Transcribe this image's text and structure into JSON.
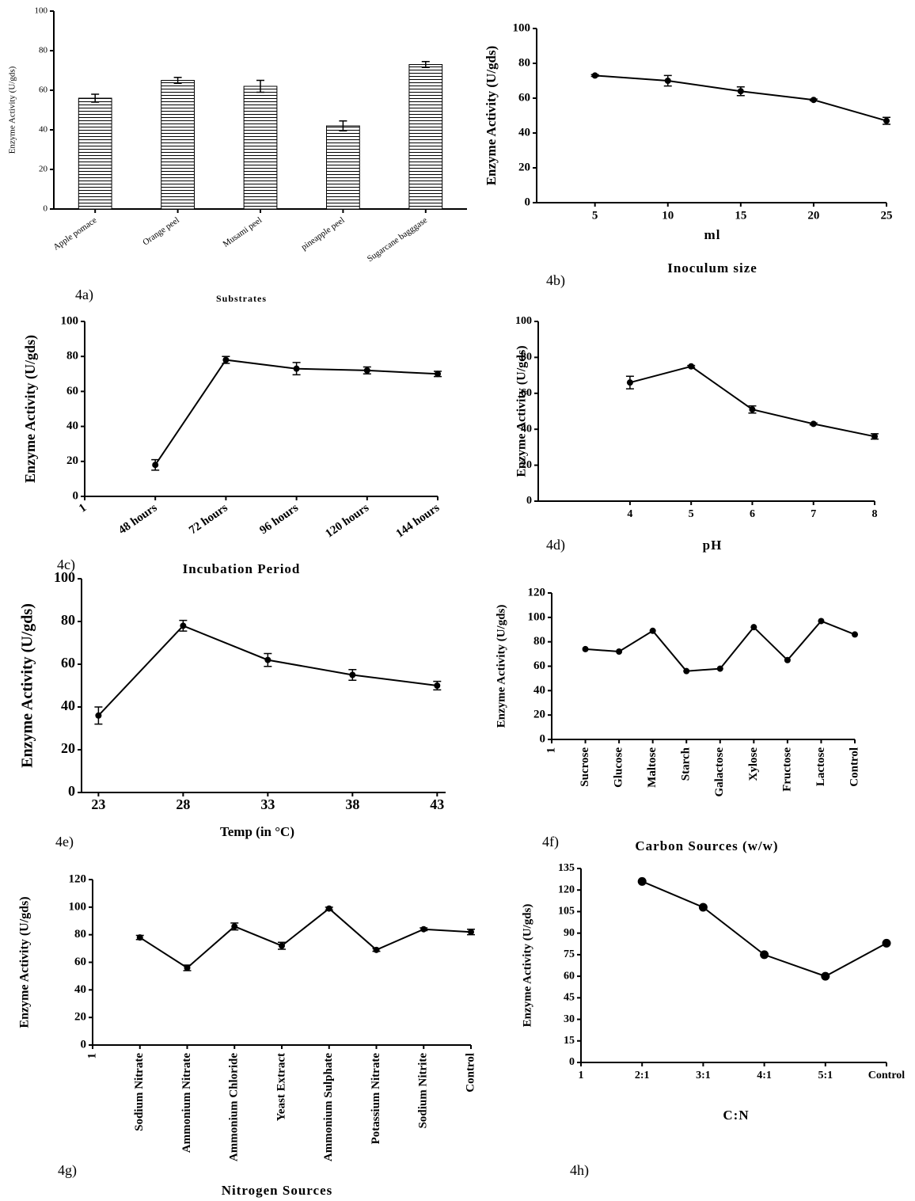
{
  "chart_data": [
    {
      "type": "bar",
      "panel_label": "4a)",
      "y_label": "Enzyme Activity (U/gds)",
      "x_label": "Substrates",
      "categories": [
        "Apple pomace",
        "Orange peel",
        "Musami peel",
        "pineapple peel",
        "Sugarcane bagggase"
      ],
      "values": [
        56,
        65,
        62,
        42,
        73
      ],
      "errors": [
        2,
        1.5,
        3,
        2.5,
        1.5
      ],
      "color": "#000000",
      "ylim": [
        0,
        100
      ],
      "yticks": [
        0,
        20,
        40,
        60,
        80,
        100
      ]
    },
    {
      "type": "line",
      "panel_label": "4b)",
      "y_label": "Enzyme Activity (U/gds)",
      "x_label": "ml",
      "x_label_2": "Inoculum size",
      "x": [
        5,
        10,
        15,
        20,
        25
      ],
      "values": [
        73,
        70,
        64,
        59,
        47
      ],
      "errors": [
        0.5,
        3,
        2.5,
        0.5,
        2
      ],
      "color": "#000000",
      "xlim": [
        1,
        25
      ],
      "xticks": [
        5,
        10,
        15,
        20,
        25
      ],
      "ylim": [
        0,
        100
      ],
      "yticks": [
        0,
        20,
        40,
        60,
        80,
        100
      ]
    },
    {
      "type": "line",
      "panel_label": "4c)",
      "y_label": "Enzyme Activity (U/gds)",
      "x_label": "Incubation Period",
      "categories": [
        "1",
        "48 hours",
        "72 hours",
        "96 hours",
        "120 hours",
        "144 hours"
      ],
      "values": [
        null,
        18,
        78,
        73,
        72,
        70
      ],
      "errors": [
        null,
        3,
        2,
        3.5,
        2,
        1.5
      ],
      "color": "#000000",
      "ylim": [
        0,
        100
      ],
      "yticks": [
        0,
        20,
        40,
        60,
        80,
        100
      ]
    },
    {
      "type": "line",
      "panel_label": "4d)",
      "y_label": "Enzyme Activity (U/gds)",
      "x_label": "pH",
      "x": [
        4,
        5,
        6,
        7,
        8
      ],
      "values": [
        66,
        75,
        51,
        43,
        36
      ],
      "errors": [
        3.5,
        0.5,
        2,
        0.5,
        1.5
      ],
      "color": "#000000",
      "xlim": [
        2.5,
        8
      ],
      "xticks": [
        4,
        5,
        6,
        7,
        8
      ],
      "ylim": [
        0,
        100
      ],
      "yticks": [
        0,
        20,
        40,
        60,
        80,
        100
      ]
    },
    {
      "type": "line",
      "panel_label": "4e)",
      "y_label": "Enzyme Activity (U/gds)",
      "x_label": "Temp (in °C)",
      "x": [
        23,
        28,
        33,
        38,
        43
      ],
      "values": [
        36,
        78,
        62,
        55,
        50
      ],
      "errors": [
        4,
        2.5,
        3,
        2.5,
        2
      ],
      "color": "#000000",
      "xlim": [
        22,
        43.5
      ],
      "xticks": [
        23,
        28,
        33,
        38,
        43
      ],
      "ylim": [
        0,
        100
      ],
      "yticks": [
        0,
        20,
        40,
        60,
        80,
        100
      ]
    },
    {
      "type": "line",
      "panel_label": "4f)",
      "y_label": "Enzyme Activity (U/gds)",
      "x_label": "Carbon Sources (w/w)",
      "categories": [
        "1",
        "Sucrose",
        "Glucose",
        "Maltose",
        "Starch",
        "Galactose",
        "Xylose",
        "Fructose",
        "Lactose",
        "Control"
      ],
      "values": [
        null,
        74,
        72,
        89,
        56,
        58,
        92,
        65,
        97,
        86
      ],
      "color": "#000000",
      "ylim": [
        0,
        120
      ],
      "yticks": [
        0,
        20,
        40,
        60,
        80,
        100,
        120
      ]
    },
    {
      "type": "line",
      "panel_label": "4g)",
      "y_label": "Enzyme Activity (U/gds)",
      "x_label": "Nitrogen Sources",
      "categories": [
        "1",
        "Sodium Nitrate",
        "Ammonium Nitrate",
        "Ammonium Chloride",
        "Yeast Extract",
        "Ammonium Sulphate",
        "Potassium Nitrate",
        "Sodium Nitrite",
        "Control"
      ],
      "values": [
        null,
        78,
        56,
        86,
        72,
        99,
        69,
        84,
        82
      ],
      "errors": [
        null,
        1.5,
        2,
        2.5,
        2.5,
        1,
        1,
        1,
        2
      ],
      "color": "#000000",
      "ylim": [
        0,
        120
      ],
      "yticks": [
        0,
        20,
        40,
        60,
        80,
        100,
        120
      ]
    },
    {
      "type": "line",
      "panel_label": "4h)",
      "y_label": "Enzyme Activity (U/gds)",
      "x_label": "C:N",
      "categories": [
        "1",
        "2:1",
        "3:1",
        "4:1",
        "5:1",
        "Control"
      ],
      "values": [
        null,
        126,
        108,
        75,
        60,
        83
      ],
      "color": "#000000",
      "ylim": [
        0,
        135
      ],
      "yticks": [
        0,
        15,
        30,
        45,
        60,
        75,
        90,
        105,
        120,
        135
      ]
    }
  ]
}
